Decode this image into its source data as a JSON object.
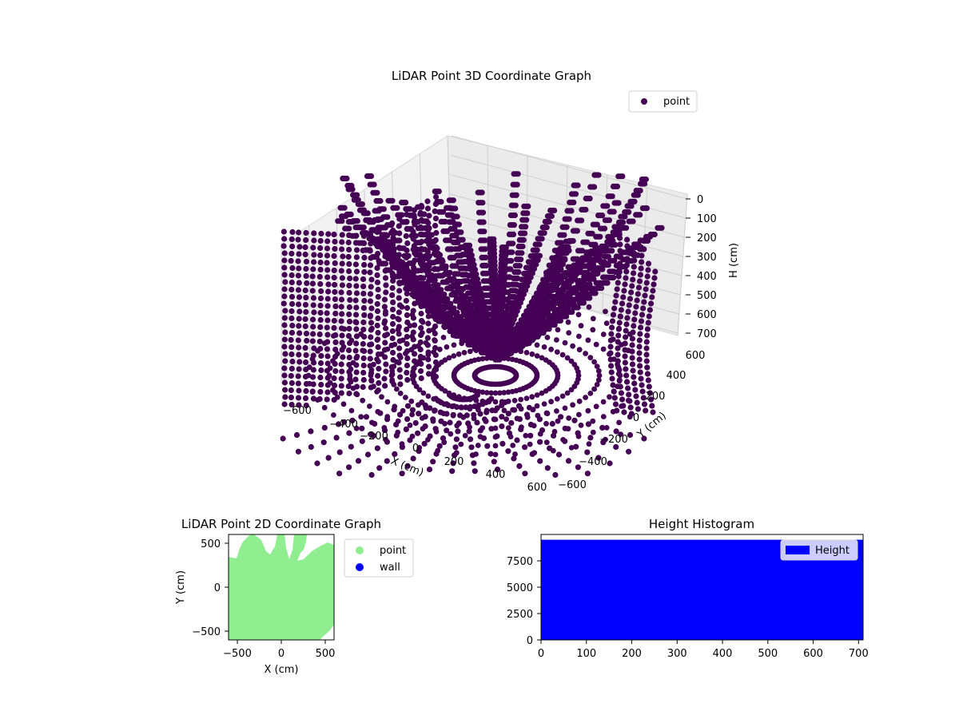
{
  "chart_data": [
    {
      "type": "scatter",
      "projection": "3d",
      "title": "LiDAR Point 3D Coordinate Graph",
      "xlabel": "X (cm)",
      "ylabel": "Y (cm)",
      "zlabel": "H (cm)",
      "xlim": [
        -600,
        600
      ],
      "ylim": [
        -600,
        600
      ],
      "zlim": [
        0,
        700
      ],
      "z_inverted": true,
      "xticks": [
        "−600",
        "−400",
        "−200",
        "0",
        "200",
        "400",
        "600"
      ],
      "yticks": [
        "−600",
        "−400",
        "−200",
        "0",
        "200",
        "400",
        "600"
      ],
      "zticks": [
        "0",
        "100",
        "200",
        "300",
        "400",
        "500",
        "600",
        "700"
      ],
      "grid": true,
      "legend": {
        "position": "top-right",
        "entries": [
          {
            "label": "point",
            "color": "#440154"
          }
        ]
      },
      "series": [
        {
          "name": "point",
          "color": "#440154"
        }
      ]
    },
    {
      "type": "scatter",
      "title": "LiDAR Point 2D Coordinate Graph",
      "xlabel": "X (cm)",
      "ylabel": "Y (cm)",
      "xlim": [
        -600,
        600
      ],
      "ylim": [
        -600,
        600
      ],
      "xticks": [
        "−500",
        "0",
        "500"
      ],
      "yticks": [
        "−500",
        "0",
        "500"
      ],
      "legend": {
        "position": "outside-right",
        "entries": [
          {
            "label": "point",
            "color": "#90ee90"
          },
          {
            "label": "wall",
            "color": "#0000ff"
          }
        ]
      },
      "series": [
        {
          "name": "point",
          "color": "#90ee90"
        },
        {
          "name": "wall",
          "color": "#0000ff"
        }
      ]
    },
    {
      "type": "bar",
      "title": "Height Histogram",
      "xlim": [
        0,
        710
      ],
      "ylim": [
        0,
        10000
      ],
      "xticks": [
        "0",
        "100",
        "200",
        "300",
        "400",
        "500",
        "600",
        "700"
      ],
      "yticks": [
        "0",
        "2500",
        "5000",
        "7500"
      ],
      "legend": {
        "position": "top-right",
        "entries": [
          {
            "label": "Height",
            "color": "#0000ff"
          }
        ]
      },
      "series": [
        {
          "name": "Height",
          "color": "#0000ff",
          "bin_range": [
            0,
            710
          ],
          "count": 9500
        }
      ]
    }
  ]
}
